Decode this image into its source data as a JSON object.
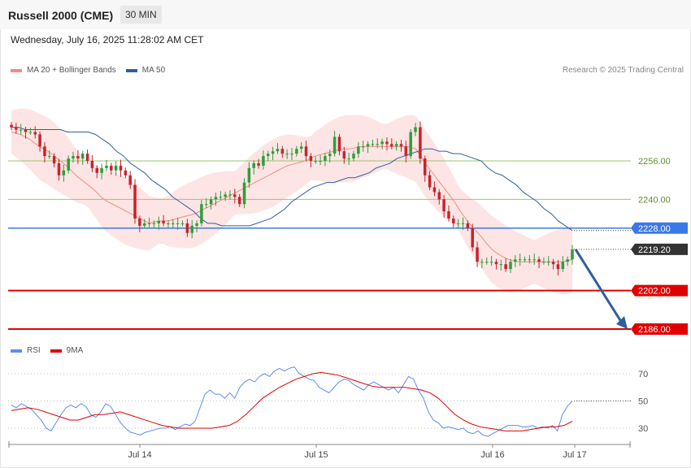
{
  "header": {
    "title": "Russell 2000 (CME)",
    "timeframe": "30 MIN"
  },
  "datetime": "Wednesday, July 16, 2025 11:28:02 AM CET",
  "credit": "Research © 2025 Trading Central",
  "legend_price": [
    {
      "label": "MA 20 + Bollinger Bands",
      "color": "#f28b82"
    },
    {
      "label": "MA 50",
      "color": "#2f5e9e"
    }
  ],
  "legend_rsi": [
    {
      "label": "RSI",
      "color": "#5b8def"
    },
    {
      "label": "9MA",
      "color": "#e00000"
    }
  ],
  "colors": {
    "up": "#2e9e3a",
    "down": "#c8232c",
    "support": "#e00000",
    "resistance_blue": "#3b78e7",
    "green_level": "#9bc46b",
    "arrow": "#2f5e9e",
    "last_price": "#333333"
  },
  "chart_data": [
    {
      "type": "candlestick",
      "title": "Russell 2000 (CME)",
      "x_tick_labels": [
        "Jul 14",
        "Jul 15",
        "Jul 16",
        "Jul 17"
      ],
      "ylim": [
        2174,
        2292
      ],
      "levels": [
        {
          "value": 2256.0,
          "label": "2256.00",
          "style": "green-line"
        },
        {
          "value": 2240.0,
          "label": "2240.00",
          "style": "green-line"
        },
        {
          "value": 2228.0,
          "label": "2228.00",
          "style": "blue-resistance"
        },
        {
          "value": 2219.2,
          "label": "2219.20",
          "style": "last-price"
        },
        {
          "value": 2202.0,
          "label": "2202.00",
          "style": "red-support"
        },
        {
          "value": 2186.0,
          "label": "2186.00",
          "style": "red-support"
        }
      ],
      "close": [
        2270,
        2269,
        2269,
        2268,
        2268,
        2267,
        2262,
        2258,
        2258,
        2255,
        2250,
        2252,
        2257,
        2258,
        2257,
        2259,
        2256,
        2253,
        2251,
        2253,
        2254,
        2252,
        2254,
        2252,
        2250,
        2246,
        2232,
        2229,
        2230,
        2230,
        2230,
        2231,
        2230,
        2230,
        2230,
        2230,
        2230,
        2226,
        2229,
        2230,
        2238,
        2238,
        2240,
        2241,
        2241,
        2242,
        2242,
        2241,
        2238,
        2247,
        2253,
        2255,
        2254,
        2258,
        2259,
        2260,
        2261,
        2259,
        2259,
        2259,
        2261,
        2262,
        2258,
        2256,
        2256,
        2256,
        2258,
        2259,
        2266,
        2260,
        2257,
        2257,
        2259,
        2262,
        2262,
        2263,
        2263,
        2263,
        2264,
        2263,
        2262,
        2263,
        2262,
        2258,
        2268,
        2270,
        2257,
        2250,
        2245,
        2243,
        2240,
        2235,
        2232,
        2230,
        2230,
        2230,
        2228,
        2220,
        2214,
        2214,
        2214,
        2214,
        2213,
        2213,
        2211,
        2214,
        2215,
        2215,
        2215,
        2215,
        2215,
        2214,
        2214,
        2214,
        2213,
        2211,
        2214,
        2215,
        2219.2
      ],
      "ma50": [
        2270,
        2270,
        2269,
        2269,
        2269,
        2269,
        2269,
        2269,
        2268,
        2268,
        2268,
        2268,
        2267,
        2265,
        2263,
        2260,
        2258,
        2255,
        2253,
        2251,
        2248,
        2246,
        2244,
        2241,
        2239,
        2237,
        2235,
        2232,
        2230,
        2230,
        2229,
        2229,
        2229,
        2229,
        2229,
        2230,
        2231,
        2232,
        2234,
        2236,
        2239,
        2241,
        2243,
        2245,
        2246,
        2247,
        2247,
        2248,
        2249,
        2249,
        2250,
        2251,
        2253,
        2254,
        2255,
        2257,
        2258,
        2259,
        2260,
        2261,
        2261,
        2260,
        2260,
        2259,
        2259,
        2258,
        2257,
        2256,
        2253,
        2251,
        2250,
        2248,
        2246,
        2243,
        2241,
        2239,
        2236,
        2234,
        2231,
        2229,
        2227
      ],
      "series": [
        {
          "name": "MA 20",
          "values": [
            2268,
            2267,
            2265,
            2262,
            2260,
            2257,
            2254,
            2250,
            2247,
            2244,
            2240,
            2238,
            2236,
            2234,
            2232,
            2230,
            2231,
            2231,
            2232,
            2233,
            2234,
            2236,
            2238,
            2240,
            2242,
            2244,
            2246,
            2248,
            2250,
            2252,
            2254,
            2255,
            2256,
            2258,
            2259,
            2260,
            2261,
            2261,
            2262,
            2262,
            2262,
            2262,
            2262,
            2262,
            2261,
            2255,
            2250,
            2245,
            2240,
            2234,
            2229,
            2225,
            2220,
            2217,
            2215,
            2214,
            2214,
            2214,
            2214,
            2214,
            2214,
            2215
          ]
        },
        {
          "name": "MA 50",
          "values": [
            2270,
            2270,
            2269,
            2268,
            2265,
            2260,
            2255,
            2250,
            2245,
            2240,
            2236,
            2232,
            2230,
            2229,
            2229,
            2230,
            2232,
            2235,
            2239,
            2243,
            2246,
            2248,
            2249,
            2250,
            2252,
            2254,
            2257,
            2259,
            2260,
            2261,
            2260,
            2259,
            2258,
            2255,
            2251,
            2248,
            2244,
            2240,
            2236,
            2232,
            2229,
            2227
          ]
        }
      ]
    },
    {
      "type": "line",
      "title": "RSI",
      "ylim": [
        20,
        80
      ],
      "y_ticks": [
        70,
        50,
        30
      ],
      "series": [
        {
          "name": "RSI",
          "values": [
            47,
            45,
            48,
            46,
            44,
            40,
            36,
            30,
            28,
            34,
            40,
            45,
            47,
            45,
            48,
            46,
            40,
            38,
            42,
            48,
            46,
            40,
            34,
            30,
            27,
            26,
            25,
            27,
            28,
            29,
            30,
            30,
            31,
            29,
            31,
            33,
            32,
            35,
            45,
            55,
            58,
            55,
            55,
            52,
            56,
            52,
            60,
            64,
            66,
            64,
            68,
            70,
            68,
            72,
            74,
            72,
            74,
            75,
            70,
            68,
            66,
            65,
            60,
            58,
            56,
            60,
            64,
            66,
            65,
            62,
            60,
            58,
            62,
            64,
            62,
            60,
            58,
            60,
            56,
            62,
            68,
            66,
            58,
            52,
            42,
            36,
            34,
            30,
            31,
            30,
            29,
            30,
            27,
            26,
            28,
            25,
            24,
            26,
            28,
            30,
            32,
            32,
            32,
            31,
            31,
            32,
            30,
            31,
            30,
            32,
            28,
            40,
            46,
            50
          ]
        },
        {
          "name": "9MA",
          "values": [
            43,
            44,
            45,
            44,
            42,
            40,
            38,
            36,
            36,
            38,
            40,
            40,
            41,
            42,
            40,
            38,
            36,
            34,
            32,
            31,
            30,
            30,
            30,
            30,
            30,
            31,
            32,
            35,
            40,
            46,
            52,
            56,
            60,
            63,
            66,
            68,
            70,
            71,
            70,
            69,
            67,
            65,
            63,
            61,
            60,
            60,
            60,
            60,
            59,
            58,
            56,
            52,
            46,
            40,
            36,
            33,
            31,
            30,
            29,
            28,
            28,
            28,
            29,
            30,
            31,
            31,
            32,
            35
          ]
        }
      ]
    }
  ]
}
